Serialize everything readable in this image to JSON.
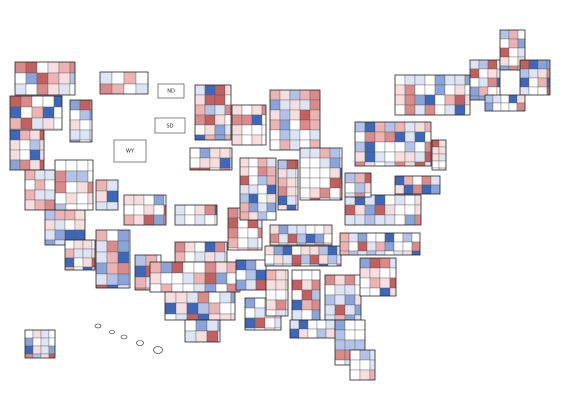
{
  "map": {
    "state_labels": [
      {
        "text": "ND"
      },
      {
        "text": "SD"
      },
      {
        "text": "WY"
      }
    ]
  }
}
